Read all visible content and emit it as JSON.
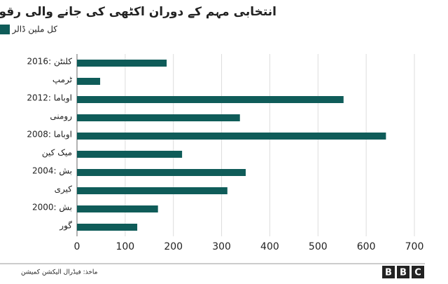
{
  "chart_data": {
    "type": "bar",
    "orientation": "horizontal",
    "title": "انتخابی مہم کے دوران اکٹھی کی جانے والی رقوم",
    "series": [
      {
        "name": "کل ملین ڈالر",
        "color": "#0f5c59",
        "values": [
          186,
          48,
          553,
          338,
          641,
          218,
          350,
          312,
          168,
          125
        ]
      }
    ],
    "categories": [
      "2016: کلنٹن",
      "ٹرمپ",
      "2012: اوباما",
      "رومنی",
      "2008: اوباما",
      "میک کین",
      "2004: بش",
      "کیری",
      "2000: بش",
      "گور"
    ],
    "xlim": [
      0,
      700
    ],
    "xticks": [
      0,
      100,
      200,
      300,
      400,
      500,
      600,
      700
    ],
    "grid": true,
    "source": "ماخذ: فیڈرال الیکشن کمیشن",
    "logo": [
      "B",
      "B",
      "C"
    ]
  }
}
